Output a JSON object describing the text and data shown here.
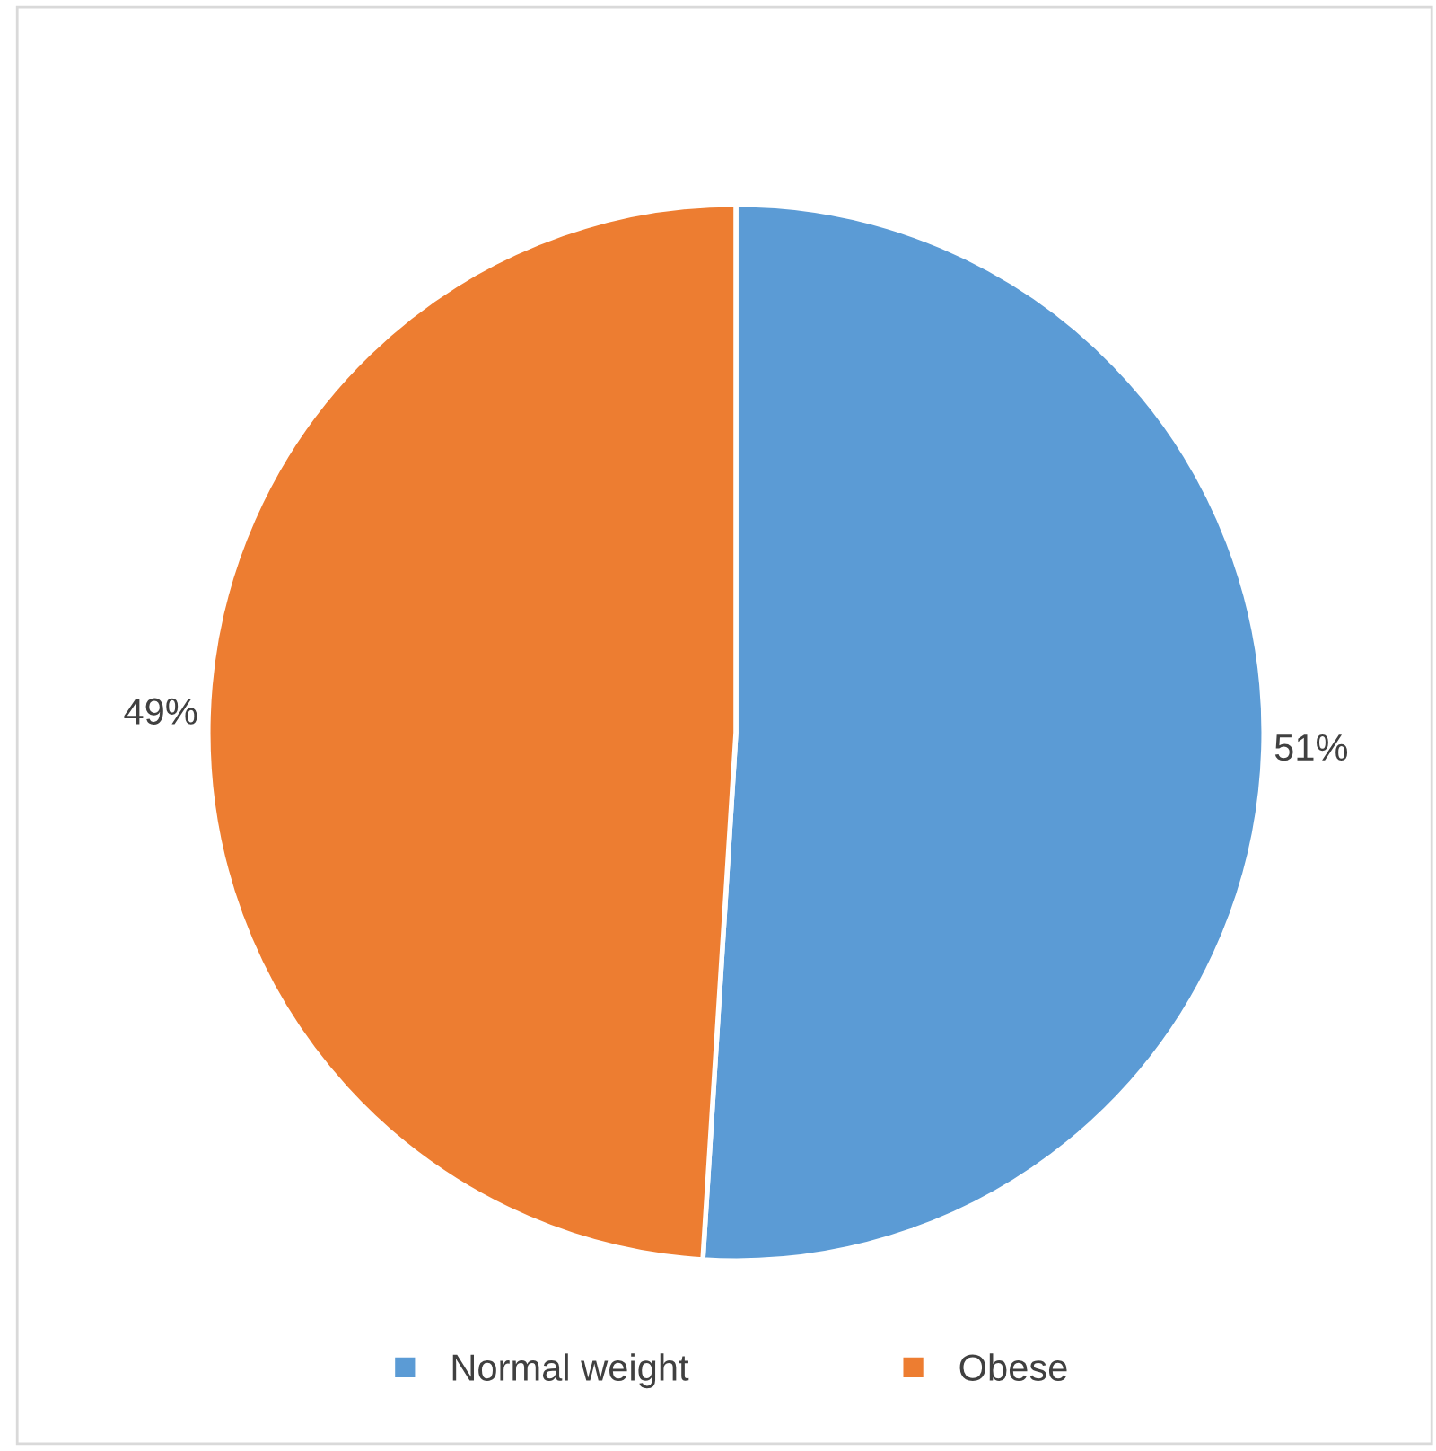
{
  "chart_data": {
    "type": "pie",
    "categories": [
      "Normal weight",
      "Obese"
    ],
    "values": [
      51,
      49
    ],
    "colors": [
      "#5b9bd5",
      "#ed7d31"
    ],
    "value_labels": [
      "51%",
      "49%"
    ],
    "legend": "bottom"
  }
}
